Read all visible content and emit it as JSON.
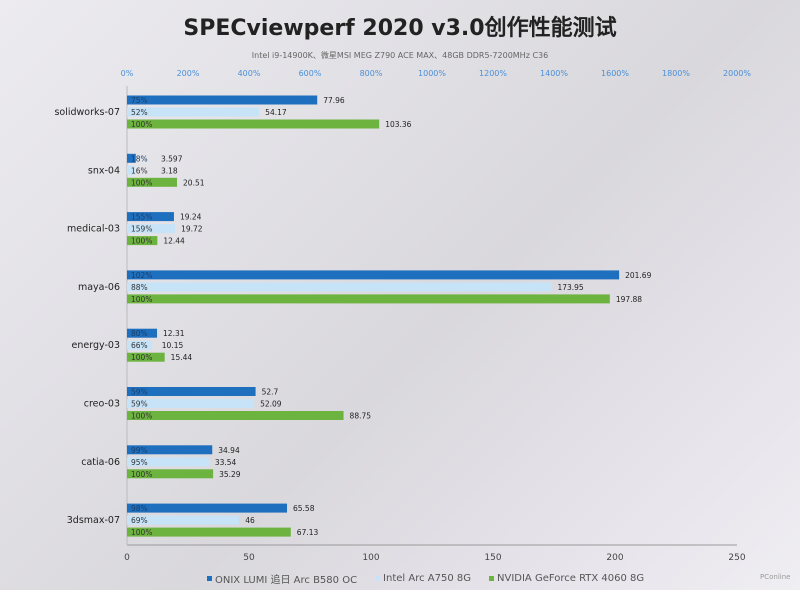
{
  "title": "SPECviewperf 2020 v3.0创作性能测试",
  "subtitle": "Intel i9-14900K、微星MSI  MEG Z790 ACE MAX、48GB DDR5-7200MHz  C36",
  "watermark": "PConline",
  "chart_data": {
    "type": "bar",
    "orientation": "horizontal",
    "title": "SPECviewperf 2020 v3.0创作性能测试",
    "categories": [
      "solidworks-07",
      "snx-04",
      "medical-03",
      "maya-06",
      "energy-03",
      "creo-03",
      "catia-06",
      "3dsmax-07"
    ],
    "series": [
      {
        "name": "ONIX LUMI 追日 Arc B580 OC",
        "color": "#1f6fbf",
        "values": [
          77.96,
          3.597,
          19.24,
          201.69,
          12.31,
          52.7,
          34.94,
          65.58
        ],
        "pct_labels": [
          "75%",
          "18%",
          "155%",
          "102%",
          "80%",
          "59%",
          "99%",
          "98%"
        ]
      },
      {
        "name": "Intel Arc A750 8G",
        "color": "#c7e3f7",
        "values": [
          54.17,
          3.18,
          19.72,
          173.95,
          10.15,
          52.09,
          33.54,
          46
        ],
        "pct_labels": [
          "52%",
          "16%",
          "159%",
          "88%",
          "66%",
          "59%",
          "95%",
          "69%"
        ]
      },
      {
        "name": "NVIDIA GeForce RTX 4060 8G",
        "color": "#6db33f",
        "values": [
          103.36,
          20.51,
          12.44,
          197.88,
          15.44,
          88.75,
          35.29,
          67.13
        ],
        "pct_labels": [
          "100%",
          "100%",
          "100%",
          "100%",
          "100%",
          "100%",
          "100%",
          "100%"
        ]
      }
    ],
    "xlim": [
      0,
      250
    ],
    "xticks": [
      "0",
      "50",
      "100",
      "150",
      "200",
      "250"
    ],
    "top_axis_ticks": [
      "0%",
      "200%",
      "400%",
      "600%",
      "800%",
      "1000%",
      "1200%",
      "1400%",
      "1600%",
      "1800%",
      "2000%"
    ],
    "top_axis_color": "#4a90d9",
    "legend_position": "bottom",
    "grid": false
  }
}
